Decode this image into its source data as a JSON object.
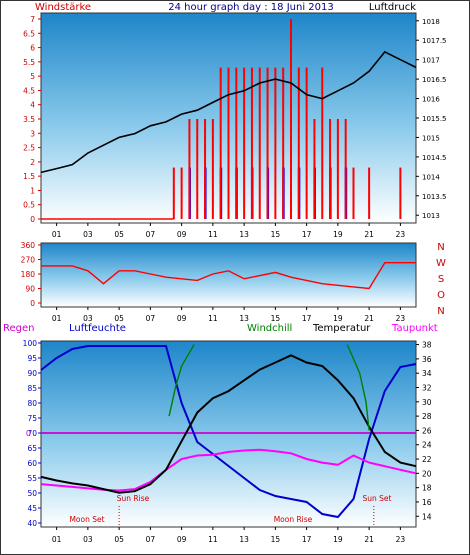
{
  "header": {
    "left_title": "Windstärke",
    "center_title": "24 hour graph day : 18 Juni 2013",
    "right_title": "Luftdruck"
  },
  "legend": {
    "regen": "Regen",
    "luftfeuchte": "Luftfeuchte",
    "windchill": "Windchill",
    "temperatur": "Temperatur",
    "taupunkt": "Taupunkt"
  },
  "annotations": {
    "sun_rise": "Sun Rise",
    "sun_set": "Sun Set",
    "moon_set": "Moon Set",
    "moon_rise": "Moon Rise"
  },
  "colors": {
    "wind": "#ff0000",
    "wind_gust": "#0000ff",
    "pressure": "#000000",
    "direction": "#ff0000",
    "humidity": "#0000cc",
    "windchill": "#008000",
    "temperature": "#000000",
    "dewpoint": "#ff00ff",
    "rain_line": "#cc00cc",
    "axis_red": "#cc0000",
    "axis_blue": "#0000cc"
  },
  "x_ticks": [
    "01",
    "03",
    "05",
    "07",
    "09",
    "11",
    "13",
    "15",
    "17",
    "19",
    "21",
    "23"
  ],
  "chart_data": [
    {
      "type": "line",
      "title": "24 hour graph day : 18 Juni 2013",
      "ylabel_left": "Windstärke",
      "ylabel_right": "Luftdruck",
      "y_left_ticks": [
        "0",
        "0.5",
        "1",
        "1.5",
        "2",
        "2.5",
        "3",
        "3.5",
        "4",
        "4.5",
        "5",
        "5.5",
        "6",
        "6.5",
        "7"
      ],
      "y_right_ticks": [
        "1013",
        "1013.5",
        "1014",
        "1014.5",
        "1015",
        "1015.5",
        "1016",
        "1016.5",
        "1017",
        "1017.5",
        "1018"
      ],
      "ylim_left": [
        0,
        7
      ],
      "ylim_right": [
        1012.8,
        1018.2
      ],
      "xlim": [
        0,
        24
      ],
      "pressure_hours": [
        0,
        1,
        2,
        3,
        4,
        5,
        6,
        7,
        8,
        9,
        10,
        11,
        12,
        13,
        14,
        15,
        16,
        17,
        18,
        19,
        20,
        21,
        22,
        23,
        24
      ],
      "pressure_values": [
        1014.1,
        1014.2,
        1014.3,
        1014.6,
        1014.8,
        1015.0,
        1015.1,
        1015.3,
        1015.4,
        1015.6,
        1015.7,
        1015.9,
        1016.1,
        1016.2,
        1016.4,
        1016.5,
        1016.4,
        1016.1,
        1016.0,
        1016.2,
        1016.4,
        1016.7,
        1017.2,
        1017.0,
        1016.8
      ],
      "wind_hours": [
        8.5,
        9.0,
        9.5,
        10.0,
        10.5,
        11.0,
        11.5,
        12.0,
        12.5,
        13.0,
        13.5,
        14.0,
        14.5,
        15.0,
        15.5,
        16.0,
        16.5,
        17.0,
        17.5,
        18.0,
        18.5,
        19.0,
        19.5,
        20.0,
        21.0,
        23.0
      ],
      "wind_values": [
        1.8,
        1.8,
        3.5,
        3.5,
        3.5,
        3.5,
        5.3,
        5.3,
        5.3,
        5.3,
        5.3,
        5.3,
        5.3,
        5.3,
        5.3,
        7.0,
        5.3,
        5.3,
        3.5,
        5.3,
        3.5,
        3.5,
        3.5,
        1.8,
        1.8,
        1.8
      ],
      "gust_hours": [
        9.5,
        10.5,
        11.5,
        12.5,
        13.5,
        14.5,
        15.5,
        16.5,
        17.5,
        18.5,
        19.5
      ],
      "gust_values": [
        1.8,
        1.8,
        1.8,
        1.8,
        1.8,
        1.8,
        1.8,
        1.8,
        1.8,
        1.8,
        1.8
      ]
    },
    {
      "type": "line",
      "title": "",
      "y_left_ticks": [
        "360",
        "270",
        "180",
        "90",
        "0"
      ],
      "y_right_ticks": [
        "N",
        "W",
        "S",
        "O",
        "N"
      ],
      "ylim": [
        0,
        360
      ],
      "direction_hours": [
        0,
        1,
        2,
        3,
        4,
        5,
        6,
        7,
        8,
        9,
        10,
        11,
        12,
        13,
        14,
        15,
        16,
        17,
        18,
        19,
        20,
        21,
        22,
        23,
        24
      ],
      "direction_values": [
        230,
        230,
        230,
        200,
        120,
        200,
        200,
        180,
        160,
        150,
        140,
        180,
        200,
        150,
        170,
        190,
        160,
        140,
        120,
        110,
        100,
        90,
        250,
        250,
        250
      ]
    },
    {
      "type": "line",
      "title": "",
      "y_left_ticks": [
        "100",
        "95",
        "90",
        "85",
        "80",
        "75",
        "70",
        "65",
        "60",
        "55",
        "50",
        "45",
        "40"
      ],
      "y_right_ticks": [
        "38",
        "36",
        "34",
        "32",
        "30",
        "28",
        "26",
        "24",
        "22",
        "20",
        "18",
        "16",
        "14"
      ],
      "rain_value": "0",
      "ylim_left": [
        40,
        100
      ],
      "ylim_right": [
        12.5,
        38.5
      ],
      "humidity_hours": [
        0,
        1,
        2,
        3,
        4,
        5,
        6,
        7,
        8,
        9,
        10,
        11,
        12,
        13,
        14,
        15,
        16,
        17,
        18,
        19,
        20,
        21,
        22,
        23,
        24
      ],
      "humidity_values": [
        91,
        95,
        98,
        99,
        99,
        99,
        99,
        99,
        99,
        80,
        67,
        63,
        59,
        55,
        51,
        49,
        48,
        47,
        43,
        42,
        48,
        68,
        84,
        92,
        93
      ],
      "temperature_hours": [
        0,
        1,
        2,
        3,
        4,
        5,
        6,
        7,
        8,
        9,
        10,
        11,
        12,
        13,
        14,
        15,
        16,
        17,
        18,
        19,
        20,
        21,
        22,
        23,
        24
      ],
      "temperature_values": [
        19.5,
        19.0,
        18.6,
        18.3,
        17.8,
        17.3,
        17.5,
        18.5,
        20.5,
        24.5,
        28.5,
        30.5,
        31.5,
        33.0,
        34.5,
        35.5,
        36.5,
        35.5,
        35.0,
        33.0,
        30.5,
        26.5,
        23.0,
        21.5,
        21.0
      ],
      "dewpoint_hours": [
        0,
        1,
        2,
        3,
        4,
        5,
        6,
        7,
        8,
        9,
        10,
        11,
        12,
        13,
        14,
        15,
        16,
        17,
        18,
        19,
        20,
        21,
        22,
        23,
        24
      ],
      "dewpoint_values": [
        18.5,
        18.3,
        18.1,
        17.9,
        17.7,
        17.6,
        17.8,
        18.8,
        20.5,
        22.0,
        22.5,
        22.6,
        23.0,
        23.2,
        23.3,
        23.1,
        22.8,
        22.0,
        21.5,
        21.2,
        22.5,
        21.5,
        21.0,
        20.5,
        20.0
      ],
      "windchill_hours": [
        8.2,
        8.4,
        8.6,
        9.0,
        9.4,
        9.8,
        19.6,
        20.0,
        20.4,
        20.8,
        21.0
      ],
      "windchill_values": [
        28.0,
        30.0,
        32.0,
        35.0,
        36.5,
        38.0,
        38.0,
        36.0,
        34.0,
        30.0,
        26.0
      ]
    }
  ]
}
